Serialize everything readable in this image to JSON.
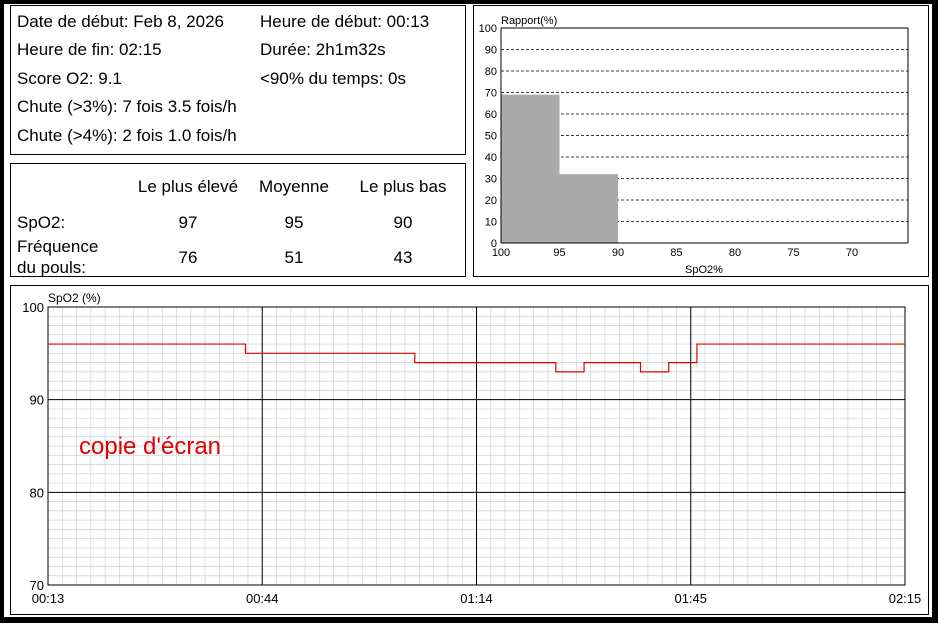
{
  "summary": {
    "start_date": "Date de début: Feb 8, 2026",
    "start_time": "Heure de début: 00:13",
    "end_time": "Heure de fin: 02:15",
    "duration": "Durée: 2h1m32s",
    "o2_score": "Score O2: 9.1",
    "below_90": "<90% du temps: 0s",
    "drop3": "Chute (>3%): 7 fois  3.5 fois/h",
    "drop4": "Chute (>4%): 2 fois  1.0 fois/h"
  },
  "stats": {
    "headers": [
      "Le plus élevé",
      "Moyenne",
      "Le plus bas"
    ],
    "rows": [
      {
        "label": "SpO2:",
        "values": [
          "97",
          "95",
          "90"
        ]
      },
      {
        "label_line1": "Fréquence",
        "label_line2": "du pouls:",
        "values": [
          "76",
          "51",
          "43"
        ]
      }
    ]
  },
  "chart_data": [
    {
      "type": "bar",
      "title": "Rapport(%)",
      "xlabel": "SpO2%",
      "ylabel": "Rapport(%)",
      "x_ticks": [
        "100",
        "95",
        "90",
        "85",
        "80",
        "75",
        "70"
      ],
      "y_ticks": [
        "0",
        "10",
        "20",
        "30",
        "40",
        "50",
        "60",
        "70",
        "80",
        "90",
        "100"
      ],
      "ylim": [
        0,
        100
      ],
      "bins": [
        {
          "range": "100-95",
          "value": 69
        },
        {
          "range": "95-90",
          "value": 32
        }
      ],
      "bar_color": "#aaaaaa",
      "grid": "horizontal dashed"
    },
    {
      "type": "line",
      "ylabel": "SpO2 (%)",
      "ylim": [
        70,
        100
      ],
      "y_ticks": [
        "100",
        "90",
        "80",
        "70"
      ],
      "x_ticks": [
        "00:13",
        "00:44",
        "01:14",
        "01:45",
        "02:15"
      ],
      "annotation": "copie d'écran",
      "line_color": "#e00000",
      "grid": "on",
      "series": [
        {
          "x": [
            0,
            4,
            8,
            12,
            16,
            20,
            24,
            28,
            32,
            36,
            40,
            44,
            48,
            52,
            56,
            60,
            64,
            68,
            72,
            76,
            80,
            84,
            88,
            92,
            96,
            100,
            104,
            108,
            112,
            116,
            121.5
          ],
          "values": [
            96,
            96,
            96,
            96,
            96,
            96,
            96,
            95,
            95,
            95,
            95,
            95,
            95,
            94,
            94,
            94,
            94,
            94,
            93,
            94,
            94,
            93,
            94,
            96,
            96,
            96,
            96,
            96,
            96,
            96,
            96
          ]
        }
      ]
    }
  ]
}
